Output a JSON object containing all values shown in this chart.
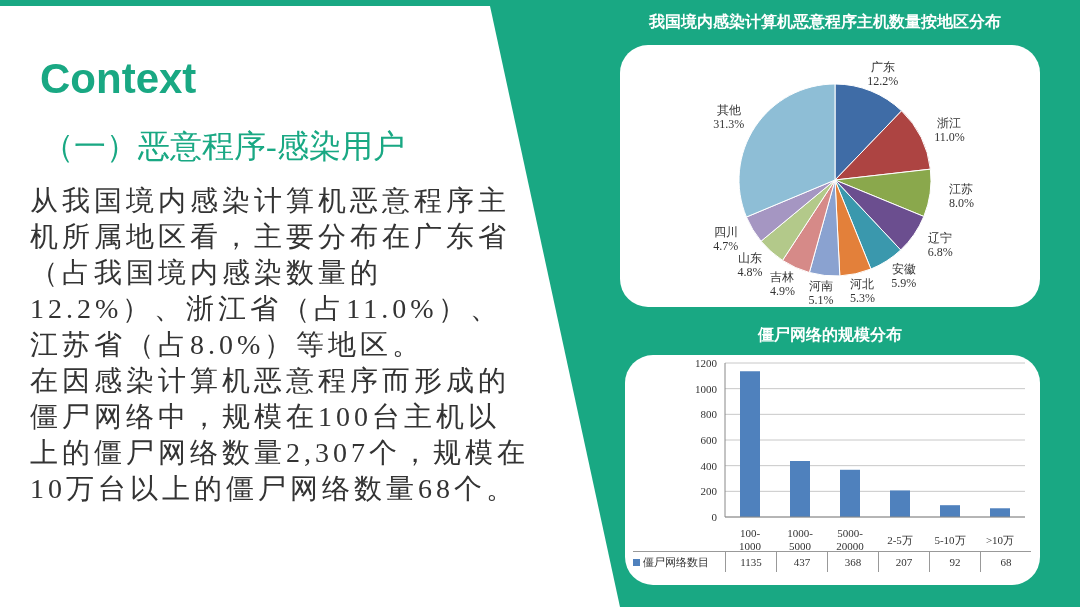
{
  "chart_data": [
    {
      "type": "other",
      "title": "Context",
      "subtitle": "（一）恶意程序-感染用户",
      "annotations": [
        "从我国境内感染计算机恶意程序主机所属地区看，主要分布在广东省（占我国境内感染数量的12.2%）、浙江省（占11.0%）、江苏省（占8.0%）等地区。",
        "在因感染计算机恶意程序而形成的僵尸网络中，规模在100台主机以上的僵尸网络数量2,307个，规模在10万台以上的僵尸网络数量68个。"
      ]
    },
    {
      "type": "pie",
      "title": "我国境内感染计算机恶意程序主机数量按地区分布",
      "categories": [
        "广东",
        "浙江",
        "江苏",
        "辽宁",
        "安徽",
        "河北",
        "河南",
        "吉林",
        "山东",
        "四川",
        "其他"
      ],
      "values": [
        12.2,
        11.0,
        8.0,
        6.8,
        5.9,
        5.3,
        5.1,
        4.9,
        4.8,
        4.7,
        31.3
      ],
      "value_labels": [
        "12.2%",
        "11.0%",
        "8.0%",
        "6.8%",
        "5.9%",
        "5.3%",
        "5.1%",
        "4.9%",
        "4.8%",
        "4.7%",
        "31.3%"
      ],
      "colors": [
        "#3f6ca6",
        "#ad4442",
        "#8aa84c",
        "#6b4e8f",
        "#3a98ad",
        "#e3803a",
        "#8aa2d0",
        "#d68a88",
        "#b3c98a",
        "#a596c2",
        "#8ebed6"
      ]
    },
    {
      "type": "bar",
      "title": "僵尸网络的规模分布",
      "categories": [
        "100-1000",
        "1000-5000",
        "5000-20000",
        "2-5万",
        "5-10万",
        ">10万"
      ],
      "series": [
        {
          "name": "僵尸网络数目",
          "color": "#4f81bd",
          "values": [
            1135,
            437,
            368,
            207,
            92,
            68
          ]
        }
      ],
      "ylim": [
        0,
        1200
      ],
      "yticks": [
        0,
        200,
        400,
        600,
        800,
        1000,
        1200
      ],
      "grid": "y",
      "legend": "bottom",
      "data_labels": true
    }
  ]
}
